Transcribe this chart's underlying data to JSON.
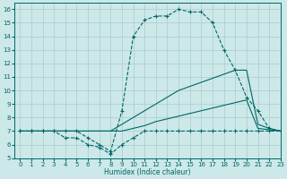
{
  "xlabel": "Humidex (Indice chaleur)",
  "xlim": [
    -0.5,
    23
  ],
  "ylim": [
    5,
    16.5
  ],
  "xticks": [
    0,
    1,
    2,
    3,
    4,
    5,
    6,
    7,
    8,
    9,
    10,
    11,
    12,
    13,
    14,
    15,
    16,
    17,
    18,
    19,
    20,
    21,
    22,
    23
  ],
  "yticks": [
    5,
    6,
    7,
    8,
    9,
    10,
    11,
    12,
    13,
    14,
    15,
    16
  ],
  "bg_color": "#cce8e8",
  "line_color": "#006666",
  "grid_color": "#aacccc",
  "series": [
    {
      "x": [
        0,
        1,
        2,
        3,
        4,
        5,
        6,
        7,
        8,
        9,
        10,
        11,
        12,
        13,
        14,
        15,
        16,
        17,
        18,
        19,
        20,
        21,
        22,
        23
      ],
      "y": [
        7,
        7,
        7,
        7,
        7,
        7,
        6.5,
        6.0,
        5.5,
        8.5,
        14.0,
        15.2,
        15.5,
        15.5,
        16.0,
        15.8,
        15.8,
        15.0,
        13.0,
        11.5,
        9.5,
        8.5,
        7.2,
        7.0
      ],
      "marker": "+",
      "linestyle": "--"
    },
    {
      "x": [
        0,
        1,
        2,
        3,
        4,
        5,
        6,
        7,
        8,
        9,
        10,
        11,
        12,
        13,
        14,
        15,
        16,
        17,
        18,
        19,
        20,
        21,
        22,
        23
      ],
      "y": [
        7,
        7,
        7,
        7,
        6.5,
        6.5,
        6.0,
        5.8,
        5.3,
        6.0,
        6.5,
        7.0,
        7.0,
        7.0,
        7.0,
        7.0,
        7.0,
        7.0,
        7.0,
        7.0,
        7.0,
        7.0,
        7.0,
        7.0
      ],
      "marker": "+",
      "linestyle": "--"
    },
    {
      "x": [
        0,
        1,
        2,
        3,
        4,
        5,
        6,
        7,
        8,
        9,
        10,
        11,
        12,
        13,
        14,
        15,
        16,
        17,
        18,
        19,
        20,
        21,
        22,
        23
      ],
      "y": [
        7,
        7,
        7,
        7,
        7,
        7,
        7,
        7,
        7,
        7.5,
        8.0,
        8.5,
        9.0,
        9.5,
        10.0,
        10.3,
        10.6,
        10.9,
        11.2,
        11.5,
        11.5,
        7.5,
        7.2,
        7.0
      ],
      "marker": null,
      "linestyle": "-"
    },
    {
      "x": [
        0,
        1,
        2,
        3,
        4,
        5,
        6,
        7,
        8,
        9,
        10,
        11,
        12,
        13,
        14,
        15,
        16,
        17,
        18,
        19,
        20,
        21,
        22,
        23
      ],
      "y": [
        7,
        7,
        7,
        7,
        7,
        7,
        7,
        7,
        7,
        7,
        7.2,
        7.4,
        7.7,
        7.9,
        8.1,
        8.3,
        8.5,
        8.7,
        8.9,
        9.1,
        9.3,
        7.2,
        7.1,
        7.0
      ],
      "marker": null,
      "linestyle": "-"
    }
  ]
}
